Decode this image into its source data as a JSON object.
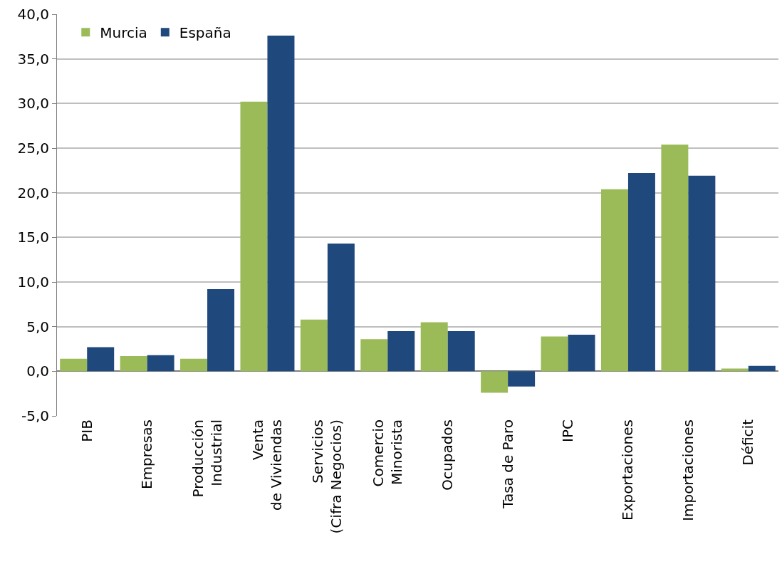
{
  "chart_data": {
    "type": "bar",
    "categories": [
      "PIB",
      "Empresas",
      "Producción\nIndustrial",
      "Venta\nde Viviendas",
      "Servicios\n(Cifra Negocios)",
      "Comercio\nMinorista",
      "Ocupados",
      "Tasa de Paro",
      "IPC",
      "Exportaciones",
      "Importaciones",
      "Déficit"
    ],
    "series": [
      {
        "name": "Murcia",
        "color": "#9bbb59",
        "values": [
          1.4,
          1.7,
          1.4,
          30.2,
          5.8,
          3.6,
          5.5,
          -2.4,
          3.9,
          20.4,
          25.4,
          0.3
        ]
      },
      {
        "name": "España",
        "color": "#1f497d",
        "values": [
          2.7,
          1.8,
          9.2,
          37.6,
          14.3,
          4.5,
          4.5,
          -1.7,
          4.1,
          22.2,
          21.9,
          0.6
        ]
      }
    ],
    "ylim": [
      -5,
      40
    ],
    "yticks": [
      {
        "value": -5,
        "label": "-5,0"
      },
      {
        "value": 0,
        "label": "0,0"
      },
      {
        "value": 5,
        "label": "5,0"
      },
      {
        "value": 10,
        "label": "10,0"
      },
      {
        "value": 15,
        "label": "15,0"
      },
      {
        "value": 20,
        "label": "20,0"
      },
      {
        "value": 25,
        "label": "25,0"
      },
      {
        "value": 30,
        "label": "30,0"
      },
      {
        "value": 35,
        "label": "35,0"
      },
      {
        "value": 40,
        "label": "40,0"
      }
    ],
    "grid": "y",
    "legend": "top left"
  }
}
